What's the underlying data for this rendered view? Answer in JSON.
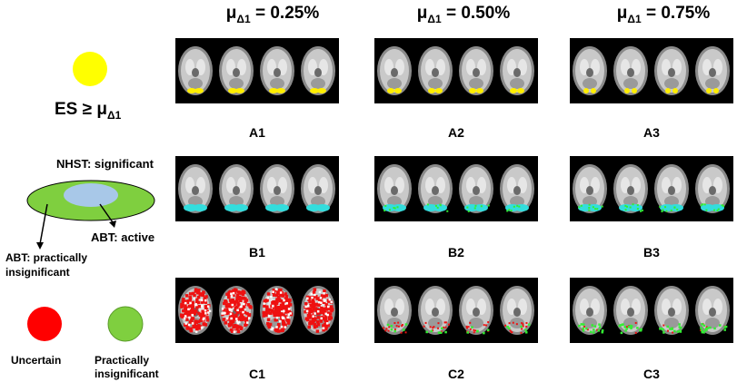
{
  "headers": [
    {
      "mu": "μ",
      "sub": "Δ1",
      "rest": " = 0.25%"
    },
    {
      "mu": "μ",
      "sub": "Δ1",
      "rest": " = 0.50%"
    },
    {
      "mu": "μ",
      "sub": "Δ1",
      "rest": " = 0.75%"
    }
  ],
  "legend": {
    "es_threshold": {
      "text": "ES ≥ μ",
      "sub": "Δ1",
      "color": "#ffff00"
    },
    "nhst_label": "NHST: significant",
    "abt_active": "ABT: active",
    "abt_insig_line1": "ABT: practically",
    "abt_insig_line2": "insignificant",
    "uncertain": {
      "label": "Uncertain",
      "color": "#ff0000"
    },
    "practically_insig": {
      "label_line1": "Practically",
      "label_line2": "insignificant",
      "color": "#7fcf3f"
    },
    "outer_ellipse_color": "#7fcf3f",
    "inner_ellipse_color": "#a8c8e8"
  },
  "panels": [
    {
      "id": "A1",
      "label": "A1",
      "overlay": "yellow",
      "level": 1
    },
    {
      "id": "A2",
      "label": "A2",
      "overlay": "yellow",
      "level": 2
    },
    {
      "id": "A3",
      "label": "A3",
      "overlay": "yellow",
      "level": 3
    },
    {
      "id": "B1",
      "label": "B1",
      "overlay": "cyan",
      "level": 1
    },
    {
      "id": "B2",
      "label": "B2",
      "overlay": "cyan",
      "level": 2
    },
    {
      "id": "B3",
      "label": "B3",
      "overlay": "cyan",
      "level": 3
    },
    {
      "id": "C1",
      "label": "C1",
      "overlay": "red",
      "level": 1
    },
    {
      "id": "C2",
      "label": "C2",
      "overlay": "red",
      "level": 2
    },
    {
      "id": "C3",
      "label": "C3",
      "overlay": "red",
      "level": 3
    }
  ],
  "overlay_colors": {
    "yellow": "#ffee00",
    "cyan": "#33dddd",
    "red": "#ee1111",
    "green": "#33ee33"
  }
}
